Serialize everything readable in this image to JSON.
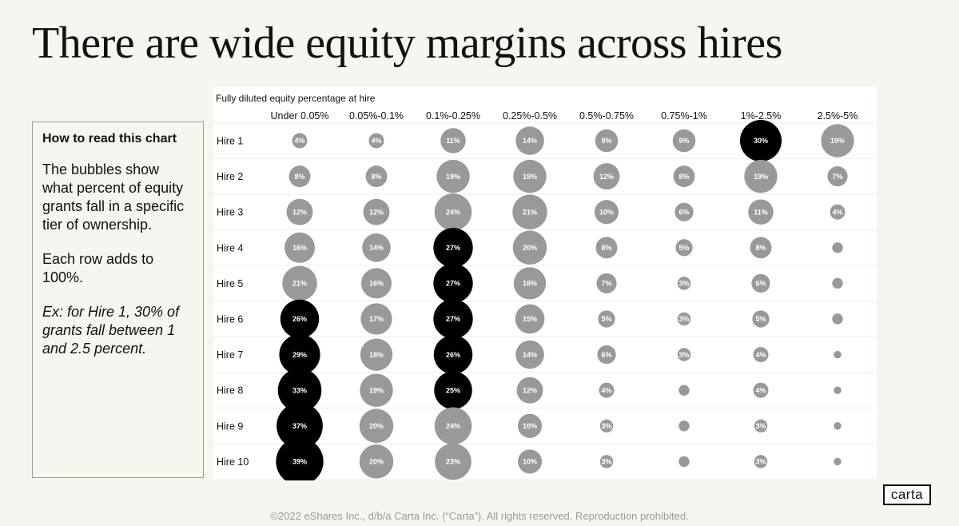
{
  "title": "There are wide equity margins across hires",
  "how_to": {
    "heading": "How to read this chart",
    "para1": "The bubbles show what percent of equity grants fall in a specific tier of ownership.",
    "para2": "Each row adds to 100%.",
    "example": "Ex: for Hire 1, 30% of grants fall between 1 and 2.5 percent."
  },
  "logo": "carta",
  "footer": "©2022 eShares Inc., d/b/a Carta Inc. (“Carta”). All rights reserved. Reproduction prohibited.",
  "colors": {
    "highlight": "#000000",
    "normal": "#999999",
    "label": "#ffffff",
    "background": "#f7f5ef"
  },
  "chart_data": {
    "type": "bubble-matrix",
    "xlabel": "Fully diluted equity percentage at hire",
    "categories": [
      "Under 0.05%",
      "0.05%-0.1%",
      "0.1%-0.25%",
      "0.25%-0.5%",
      "0.5%-0.75%",
      "0.75%-1%",
      "1%-2.5%",
      "2.5%-5%"
    ],
    "rows": [
      "Hire 1",
      "Hire 2",
      "Hire 3",
      "Hire 4",
      "Hire 5",
      "Hire 6",
      "Hire 7",
      "Hire 8",
      "Hire 9",
      "Hire 10"
    ],
    "values": [
      [
        4,
        4,
        11,
        14,
        9,
        9,
        30,
        19
      ],
      [
        8,
        8,
        19,
        19,
        12,
        8,
        19,
        7
      ],
      [
        12,
        12,
        24,
        21,
        10,
        6,
        11,
        4
      ],
      [
        16,
        14,
        27,
        20,
        8,
        5,
        8,
        2
      ],
      [
        21,
        16,
        27,
        18,
        7,
        3,
        6,
        2
      ],
      [
        26,
        17,
        27,
        15,
        5,
        3,
        5,
        2
      ],
      [
        29,
        18,
        26,
        14,
        6,
        3,
        4,
        1
      ],
      [
        33,
        19,
        25,
        12,
        4,
        2,
        4,
        1
      ],
      [
        37,
        20,
        24,
        10,
        3,
        2,
        3,
        1
      ],
      [
        39,
        20,
        23,
        10,
        3,
        2,
        3,
        1
      ]
    ],
    "labeled": [
      [
        true,
        true,
        true,
        true,
        true,
        true,
        true,
        true
      ],
      [
        true,
        true,
        true,
        true,
        true,
        true,
        true,
        true
      ],
      [
        true,
        true,
        true,
        true,
        true,
        true,
        true,
        true
      ],
      [
        true,
        true,
        true,
        true,
        true,
        true,
        true,
        false
      ],
      [
        true,
        true,
        true,
        true,
        true,
        true,
        true,
        false
      ],
      [
        true,
        true,
        true,
        true,
        true,
        true,
        true,
        false
      ],
      [
        true,
        true,
        true,
        true,
        true,
        true,
        true,
        false
      ],
      [
        true,
        true,
        true,
        true,
        true,
        false,
        true,
        false
      ],
      [
        true,
        true,
        true,
        true,
        true,
        false,
        true,
        false
      ],
      [
        true,
        true,
        true,
        true,
        true,
        false,
        true,
        false
      ]
    ],
    "highlighted": [
      [
        false,
        false,
        false,
        false,
        false,
        false,
        true,
        false
      ],
      [
        false,
        false,
        false,
        false,
        false,
        false,
        false,
        false
      ],
      [
        false,
        false,
        false,
        false,
        false,
        false,
        false,
        false
      ],
      [
        false,
        false,
        true,
        false,
        false,
        false,
        false,
        false
      ],
      [
        false,
        false,
        true,
        false,
        false,
        false,
        false,
        false
      ],
      [
        true,
        false,
        true,
        false,
        false,
        false,
        false,
        false
      ],
      [
        true,
        false,
        true,
        false,
        false,
        false,
        false,
        false
      ],
      [
        true,
        false,
        true,
        false,
        false,
        false,
        false,
        false
      ],
      [
        true,
        false,
        false,
        false,
        false,
        false,
        false,
        false
      ],
      [
        true,
        false,
        false,
        false,
        false,
        false,
        false,
        false
      ]
    ]
  }
}
